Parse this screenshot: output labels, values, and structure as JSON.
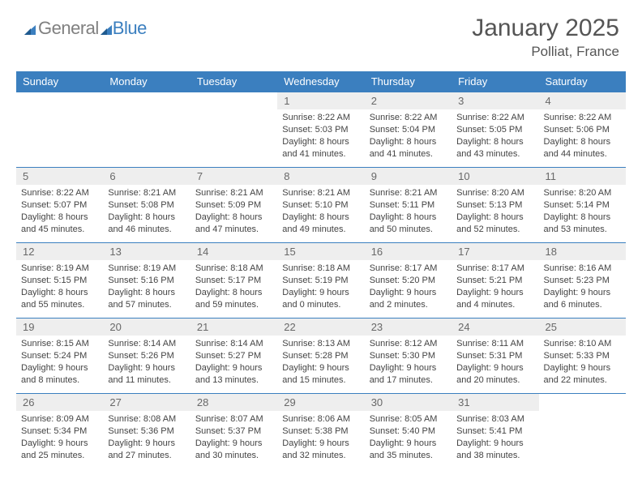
{
  "brand": {
    "part1": "General",
    "part2": "Blue"
  },
  "title": "January 2025",
  "location": "Polliat, France",
  "colors": {
    "header_bg": "#3b7fbf",
    "header_text": "#ffffff",
    "daynum_bg": "#eeeeee",
    "daynum_text": "#686868",
    "body_text": "#444444",
    "title_text": "#555555",
    "row_border": "#3b7fbf"
  },
  "day_headers": [
    "Sunday",
    "Monday",
    "Tuesday",
    "Wednesday",
    "Thursday",
    "Friday",
    "Saturday"
  ],
  "weeks": [
    [
      {
        "n": "",
        "sr": "",
        "ss": "",
        "dl": "",
        "empty": true
      },
      {
        "n": "",
        "sr": "",
        "ss": "",
        "dl": "",
        "empty": true
      },
      {
        "n": "",
        "sr": "",
        "ss": "",
        "dl": "",
        "empty": true
      },
      {
        "n": "1",
        "sr": "8:22 AM",
        "ss": "5:03 PM",
        "dl": "8 hours and 41 minutes."
      },
      {
        "n": "2",
        "sr": "8:22 AM",
        "ss": "5:04 PM",
        "dl": "8 hours and 41 minutes."
      },
      {
        "n": "3",
        "sr": "8:22 AM",
        "ss": "5:05 PM",
        "dl": "8 hours and 43 minutes."
      },
      {
        "n": "4",
        "sr": "8:22 AM",
        "ss": "5:06 PM",
        "dl": "8 hours and 44 minutes."
      }
    ],
    [
      {
        "n": "5",
        "sr": "8:22 AM",
        "ss": "5:07 PM",
        "dl": "8 hours and 45 minutes."
      },
      {
        "n": "6",
        "sr": "8:21 AM",
        "ss": "5:08 PM",
        "dl": "8 hours and 46 minutes."
      },
      {
        "n": "7",
        "sr": "8:21 AM",
        "ss": "5:09 PM",
        "dl": "8 hours and 47 minutes."
      },
      {
        "n": "8",
        "sr": "8:21 AM",
        "ss": "5:10 PM",
        "dl": "8 hours and 49 minutes."
      },
      {
        "n": "9",
        "sr": "8:21 AM",
        "ss": "5:11 PM",
        "dl": "8 hours and 50 minutes."
      },
      {
        "n": "10",
        "sr": "8:20 AM",
        "ss": "5:13 PM",
        "dl": "8 hours and 52 minutes."
      },
      {
        "n": "11",
        "sr": "8:20 AM",
        "ss": "5:14 PM",
        "dl": "8 hours and 53 minutes."
      }
    ],
    [
      {
        "n": "12",
        "sr": "8:19 AM",
        "ss": "5:15 PM",
        "dl": "8 hours and 55 minutes."
      },
      {
        "n": "13",
        "sr": "8:19 AM",
        "ss": "5:16 PM",
        "dl": "8 hours and 57 minutes."
      },
      {
        "n": "14",
        "sr": "8:18 AM",
        "ss": "5:17 PM",
        "dl": "8 hours and 59 minutes."
      },
      {
        "n": "15",
        "sr": "8:18 AM",
        "ss": "5:19 PM",
        "dl": "9 hours and 0 minutes."
      },
      {
        "n": "16",
        "sr": "8:17 AM",
        "ss": "5:20 PM",
        "dl": "9 hours and 2 minutes."
      },
      {
        "n": "17",
        "sr": "8:17 AM",
        "ss": "5:21 PM",
        "dl": "9 hours and 4 minutes."
      },
      {
        "n": "18",
        "sr": "8:16 AM",
        "ss": "5:23 PM",
        "dl": "9 hours and 6 minutes."
      }
    ],
    [
      {
        "n": "19",
        "sr": "8:15 AM",
        "ss": "5:24 PM",
        "dl": "9 hours and 8 minutes."
      },
      {
        "n": "20",
        "sr": "8:14 AM",
        "ss": "5:26 PM",
        "dl": "9 hours and 11 minutes."
      },
      {
        "n": "21",
        "sr": "8:14 AM",
        "ss": "5:27 PM",
        "dl": "9 hours and 13 minutes."
      },
      {
        "n": "22",
        "sr": "8:13 AM",
        "ss": "5:28 PM",
        "dl": "9 hours and 15 minutes."
      },
      {
        "n": "23",
        "sr": "8:12 AM",
        "ss": "5:30 PM",
        "dl": "9 hours and 17 minutes."
      },
      {
        "n": "24",
        "sr": "8:11 AM",
        "ss": "5:31 PM",
        "dl": "9 hours and 20 minutes."
      },
      {
        "n": "25",
        "sr": "8:10 AM",
        "ss": "5:33 PM",
        "dl": "9 hours and 22 minutes."
      }
    ],
    [
      {
        "n": "26",
        "sr": "8:09 AM",
        "ss": "5:34 PM",
        "dl": "9 hours and 25 minutes."
      },
      {
        "n": "27",
        "sr": "8:08 AM",
        "ss": "5:36 PM",
        "dl": "9 hours and 27 minutes."
      },
      {
        "n": "28",
        "sr": "8:07 AM",
        "ss": "5:37 PM",
        "dl": "9 hours and 30 minutes."
      },
      {
        "n": "29",
        "sr": "8:06 AM",
        "ss": "5:38 PM",
        "dl": "9 hours and 32 minutes."
      },
      {
        "n": "30",
        "sr": "8:05 AM",
        "ss": "5:40 PM",
        "dl": "9 hours and 35 minutes."
      },
      {
        "n": "31",
        "sr": "8:03 AM",
        "ss": "5:41 PM",
        "dl": "9 hours and 38 minutes."
      },
      {
        "n": "",
        "sr": "",
        "ss": "",
        "dl": "",
        "empty": true
      }
    ]
  ],
  "labels": {
    "sunrise": "Sunrise:",
    "sunset": "Sunset:",
    "daylight": "Daylight:"
  }
}
